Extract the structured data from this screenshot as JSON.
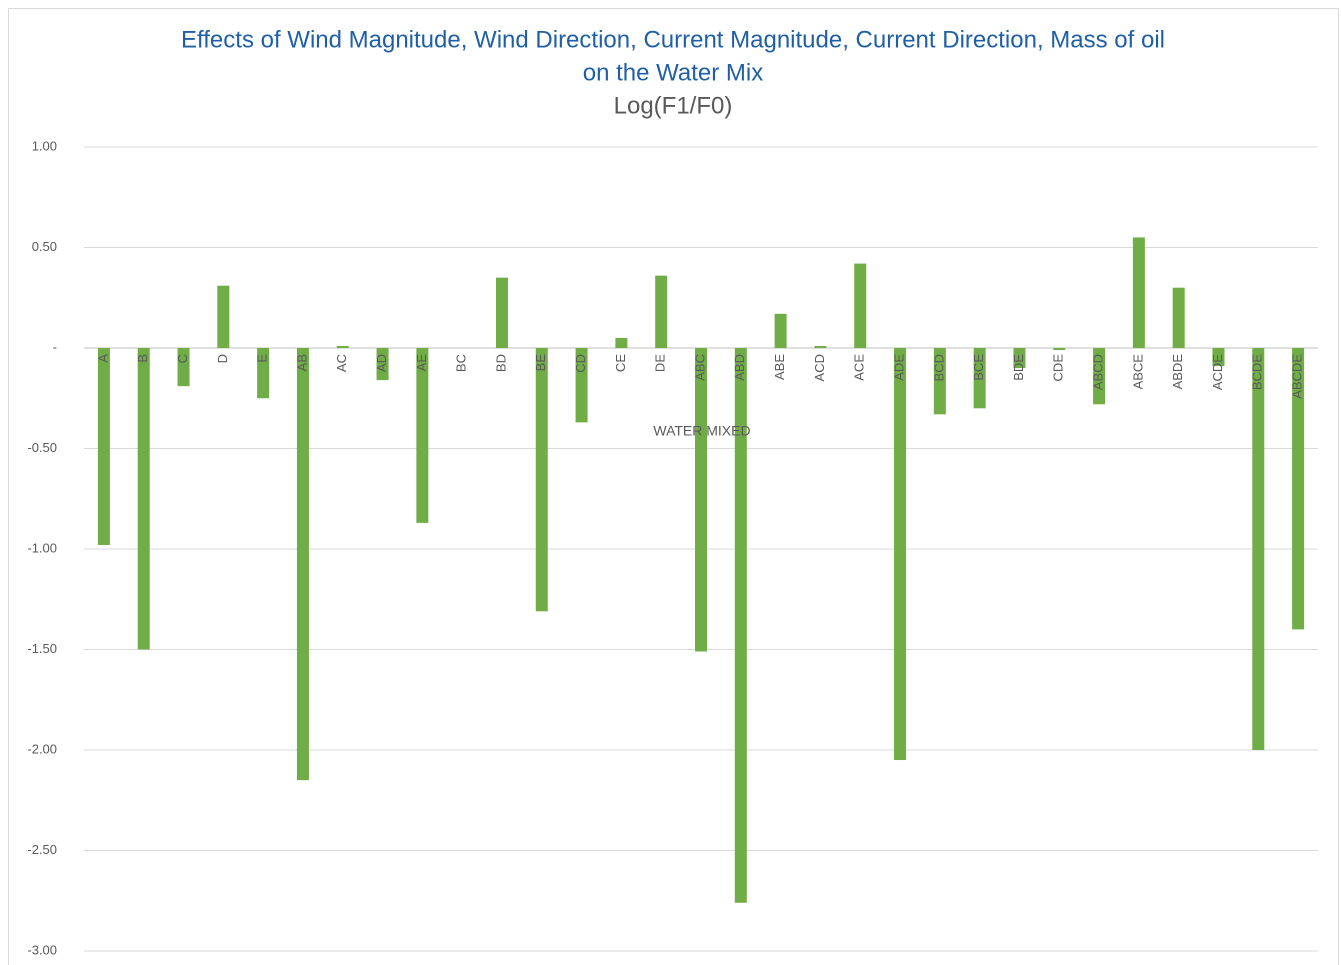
{
  "chart_data": {
    "type": "bar",
    "title": [
      "Effects of Wind Magnitude, Wind Direction, Current Magnitude, Current Direction, Mass of oil",
      "on the Water Mix"
    ],
    "subtitle": "Log(F1/F0)",
    "x_label": "WATER MIXED",
    "categories": [
      "A",
      "B",
      "C",
      "D",
      "E",
      "AB",
      "AC",
      "AD",
      "AE",
      "BC",
      "BD",
      "BE",
      "CD",
      "CE",
      "DE",
      "ABC",
      "ABD",
      "ABE",
      "ACD",
      "ACE",
      "ADE",
      "BCD",
      "BCE",
      "BDE",
      "CDE",
      "ABCD",
      "ABCE",
      "ABDE",
      "ACDE",
      "BCDE",
      "ABCDE"
    ],
    "values": [
      -0.98,
      -1.5,
      -0.19,
      0.31,
      -0.25,
      -2.15,
      0.01,
      -0.16,
      -0.87,
      0,
      0.35,
      -1.31,
      -0.37,
      0.05,
      0.36,
      -1.51,
      -2.76,
      0.17,
      0.01,
      0.42,
      -2.05,
      -0.33,
      -0.3,
      -0.1,
      -0.01,
      -0.28,
      0.55,
      0.3,
      -0.09,
      -2.0,
      -1.4
    ],
    "color": "#70ad47",
    "ylim": [
      -3,
      1
    ],
    "yticks": [
      {
        "value": 1,
        "label": "1.00"
      },
      {
        "value": 0.5,
        "label": "0.50"
      },
      {
        "value": 0,
        "label": "-"
      },
      {
        "value": -0.5,
        "label": "-0.50"
      },
      {
        "value": -1,
        "label": "-1.00"
      },
      {
        "value": -1.5,
        "label": "-1.50"
      },
      {
        "value": -2,
        "label": "-2.00"
      },
      {
        "value": -2.5,
        "label": "-2.50"
      },
      {
        "value": -3,
        "label": "-3.00"
      }
    ],
    "grid": true
  }
}
